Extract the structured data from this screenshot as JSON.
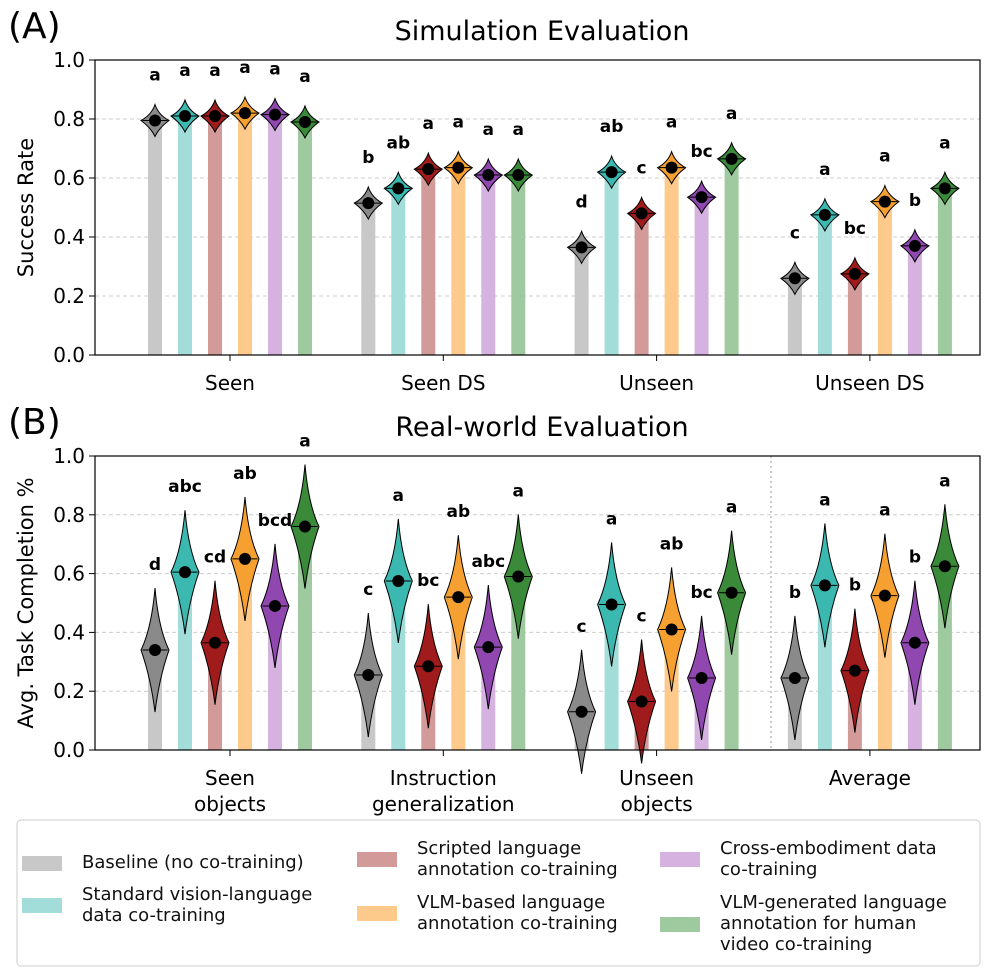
{
  "chart_data": [
    {
      "type": "bar",
      "panel": "(A)",
      "title": "Simulation Evaluation",
      "y_label": "Success Rate",
      "categories": [
        "Seen",
        "Seen DS",
        "Unseen",
        "Unseen DS"
      ],
      "ylim": [
        0,
        1
      ],
      "grid": true,
      "yticks": [
        {
          "value": 0,
          "label": "0.0"
        },
        {
          "value": 0.2,
          "label": "0.2"
        },
        {
          "value": 0.4,
          "label": "0.4"
        },
        {
          "value": 0.6,
          "label": "0.6"
        },
        {
          "value": 0.8,
          "label": "0.8"
        },
        {
          "value": 1,
          "label": "1.0"
        }
      ],
      "series": [
        {
          "name": "Baseline (no co-training)",
          "color": "#c8c8c8",
          "violin_color": "#8a8a8a",
          "values": [
            0.795,
            0.515,
            0.365,
            0.26
          ],
          "labels": [
            "a",
            "b",
            "d",
            "c"
          ]
        },
        {
          "name": "Standard vision-language\ndata co-training",
          "color": "#a3ddd9",
          "violin_color": "#3bb8b0",
          "values": [
            0.81,
            0.565,
            0.62,
            0.475
          ],
          "labels": [
            "a",
            "ab",
            "ab",
            "a"
          ]
        },
        {
          "name": "Scripted language\nannotation co-training",
          "color": "#d39a9a",
          "violin_color": "#a01c1c",
          "values": [
            0.81,
            0.63,
            0.48,
            0.275
          ],
          "labels": [
            "a",
            "a",
            "c",
            "bc"
          ]
        },
        {
          "name": "VLM-based language\nannotation co-training",
          "color": "#fdca8c",
          "violin_color": "#f5a030",
          "values": [
            0.82,
            0.635,
            0.635,
            0.52
          ],
          "labels": [
            "a",
            "a",
            "a",
            "a"
          ]
        },
        {
          "name": "Cross-embodiment data\nco-training",
          "color": "#d5b2e0",
          "violin_color": "#9048b0",
          "values": [
            0.815,
            0.61,
            0.535,
            0.37
          ],
          "labels": [
            "a",
            "a",
            "bc",
            "b"
          ]
        },
        {
          "name": "VLM-generated language\nannotation for human\nvideo co-training",
          "color": "#9fc99f",
          "violin_color": "#3a8a3a",
          "values": [
            0.79,
            0.61,
            0.665,
            0.565
          ],
          "labels": [
            "a",
            "a",
            "a",
            "a"
          ]
        }
      ]
    },
    {
      "type": "bar",
      "panel": "(B)",
      "title": "Real-world Evaluation",
      "y_label": "Avg. Task Completion %",
      "categories": [
        [
          "Seen",
          "objects"
        ],
        [
          "Instruction",
          "generalization"
        ],
        [
          "Unseen",
          "objects"
        ],
        [
          "Average"
        ]
      ],
      "ylim": [
        0,
        1
      ],
      "grid": true,
      "yticks": [
        {
          "value": 0,
          "label": "0.0"
        },
        {
          "value": 0.2,
          "label": "0.2"
        },
        {
          "value": 0.4,
          "label": "0.4"
        },
        {
          "value": 0.6,
          "label": "0.6"
        },
        {
          "value": 0.8,
          "label": "0.8"
        },
        {
          "value": 1,
          "label": "1.0"
        }
      ],
      "series": [
        {
          "color": "#c8c8c8",
          "violin_color": "#8a8a8a",
          "values": [
            0.34,
            0.255,
            0.13,
            0.245
          ],
          "labels": [
            "d",
            "c",
            "c",
            "b"
          ]
        },
        {
          "color": "#a3ddd9",
          "violin_color": "#3bb8b0",
          "values": [
            0.605,
            0.575,
            0.495,
            0.56
          ],
          "labels": [
            "abc",
            "a",
            "a",
            "a"
          ]
        },
        {
          "color": "#d39a9a",
          "violin_color": "#a01c1c",
          "values": [
            0.365,
            0.285,
            0.165,
            0.27
          ],
          "labels": [
            "cd",
            "bc",
            "c",
            "b"
          ]
        },
        {
          "color": "#fdca8c",
          "violin_color": "#f5a030",
          "values": [
            0.65,
            0.52,
            0.41,
            0.525
          ],
          "labels": [
            "ab",
            "ab",
            "ab",
            "a"
          ]
        },
        {
          "color": "#d5b2e0",
          "violin_color": "#9048b0",
          "values": [
            0.49,
            0.35,
            0.245,
            0.365
          ],
          "labels": [
            "bcd",
            "abc",
            "bc",
            "b"
          ]
        },
        {
          "color": "#9fc99f",
          "violin_color": "#3a8a3a",
          "values": [
            0.76,
            0.59,
            0.535,
            0.625
          ],
          "labels": [
            "a",
            "a",
            "a",
            "a"
          ]
        }
      ]
    }
  ]
}
